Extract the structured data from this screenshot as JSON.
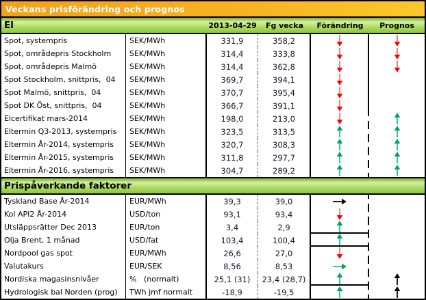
{
  "title": "Veckans prisförändring och prognos",
  "columns": {
    "date": "2013-04-29",
    "prev_week": "Fg vecka",
    "change": "Förändring",
    "forecast": "Prognos"
  },
  "sections": [
    {
      "title": "El",
      "rows": [
        {
          "label": "Spot, systempris",
          "unit": "SEK/MWh",
          "current": "331,9",
          "previous": "358,2",
          "change": "red-down",
          "forecast": "red-down"
        },
        {
          "label": "Spot, områdepris Stockholm",
          "unit": "SEK/MWh",
          "current": "314,4",
          "previous": "333,8",
          "change": "red-down",
          "forecast": "red-down"
        },
        {
          "label": "Spot, områdepris Malmö",
          "unit": "SEK/MWh",
          "current": "314,4",
          "previous": "362,8",
          "change": "red-down",
          "forecast": "red-down"
        },
        {
          "label": "Spot Stockholm, snittpris,  04",
          "unit": "SEK/MWh",
          "current": "369,7",
          "previous": "394,1",
          "change": "red-down",
          "forecast": ""
        },
        {
          "label": "Spot Malmö, snittpris,  04",
          "unit": "SEK/MWh",
          "current": "370,7",
          "previous": "395,4",
          "change": "red-down",
          "forecast": ""
        },
        {
          "label": "Spot DK Öst, snittpris,  04",
          "unit": "SEK/MWh",
          "current": "366,7",
          "previous": "391,1",
          "change": "red-down",
          "forecast": ""
        },
        {
          "label": "Elcertifikat mars-2014",
          "unit": "SEK/MWh",
          "current": "198,0",
          "previous": "213,0",
          "change": "red-down",
          "forecast": "green-up"
        },
        {
          "label": "Eltermin Q3-2013, systempris",
          "unit": "SEK/MWh",
          "current": "323,5",
          "previous": "313,5",
          "change": "green-up",
          "forecast": "green-up"
        },
        {
          "label": "Eltermin År-2014, systempris",
          "unit": "SEK/MWh",
          "current": "320,7",
          "previous": "308,3",
          "change": "green-up",
          "forecast": "green-up"
        },
        {
          "label": "Eltermin År-2015, systempris",
          "unit": "SEK/MWh",
          "current": "311,8",
          "previous": "297,7",
          "change": "green-up",
          "forecast": "green-up"
        },
        {
          "label": "Eltermin År-2016, systempris",
          "unit": "SEK/MWh",
          "current": "304,7",
          "previous": "289,2",
          "change": "green-up",
          "forecast": "green-up"
        }
      ]
    },
    {
      "title": "Prispåverkande faktorer",
      "rows": [
        {
          "label": "Tyskland Base År-2014",
          "unit": "EUR/MWh",
          "current": "39,3",
          "previous": "39,0",
          "change": "black-right",
          "forecast": ""
        },
        {
          "label": "Kol API2 År-2014",
          "unit": "USD/ton",
          "current": "93,1",
          "previous": "93,4",
          "change": "red-down",
          "forecast": ""
        },
        {
          "label": "Utsläppsrätter Dec 2013",
          "unit": "EUR/ton",
          "current": "3,4",
          "previous": "2,9",
          "change": "green-up",
          "forecast": ""
        },
        {
          "label": "Olja Brent, 1 månad",
          "unit": "USD/fat",
          "current": "103,4",
          "previous": "100,4",
          "change": "green-up",
          "forecast": ""
        },
        {
          "label": "Nordpool gas spot",
          "unit": "EUR/MWh",
          "current": "26,6",
          "previous": "27,0",
          "change": "red-down",
          "forecast": ""
        },
        {
          "label": "Valutakurs",
          "unit": "EUR/SEK",
          "current": "8,56",
          "previous": "8,53",
          "change": "green-right",
          "forecast": ""
        },
        {
          "label": "Nordiska magasinsnivåer",
          "unit": "%   (normalt)",
          "current": "25,1 (31)",
          "previous": "23,4 (28,7)",
          "change": "green-up",
          "forecast": "black-up"
        },
        {
          "label": "Hydrologisk bal Norden (prog)",
          "unit": "TWh jmf normalt",
          "current": "-18,9",
          "previous": "-19,5",
          "change": "green-up",
          "forecast": "black-up"
        }
      ]
    }
  ],
  "colors": {
    "header_orange": "#F6A41C",
    "section_green": "#8CC63E",
    "arrow_red": {
      "head": "#FF0000",
      "shaft": "#FF7A7A"
    },
    "arrow_green": {
      "head": "#00A550",
      "shaft": "#2EC8A8"
    },
    "arrow_black": {
      "head": "#000000",
      "shaft": "#222222"
    }
  }
}
